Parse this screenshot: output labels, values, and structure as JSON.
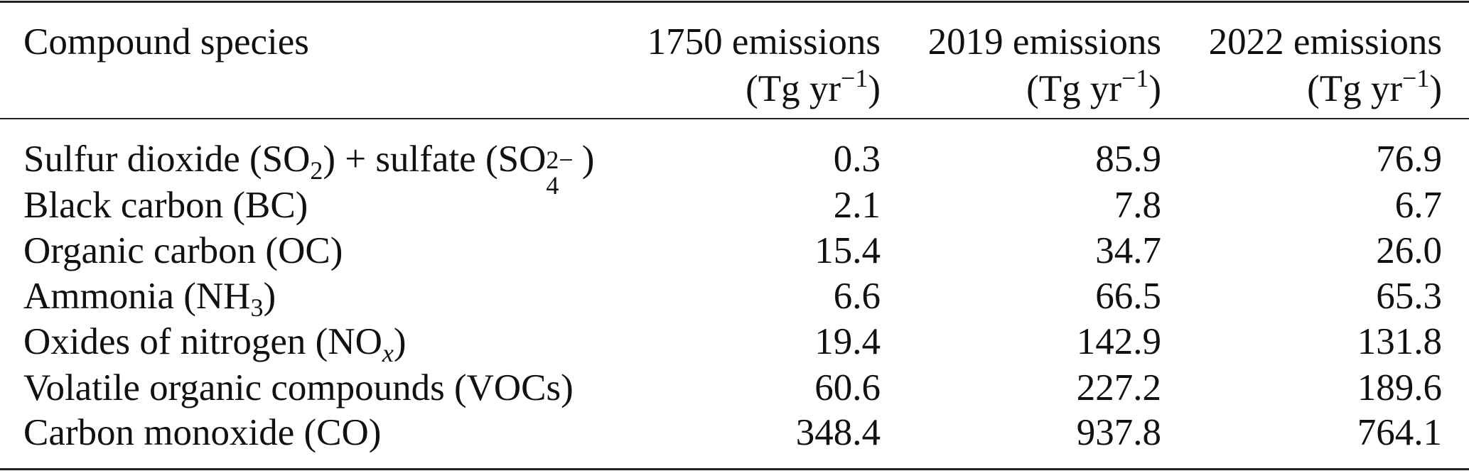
{
  "header": {
    "species": "Compound species",
    "columns": [
      {
        "line1": "1750 emissions",
        "unit": "(Tg yr",
        "exp": "−1",
        "close": ")"
      },
      {
        "line1": "2019 emissions",
        "unit": "(Tg yr",
        "exp": "−1",
        "close": ")"
      },
      {
        "line1": "2022 emissions",
        "unit": "(Tg yr",
        "exp": "−1",
        "close": ")"
      }
    ]
  },
  "rows": [
    {
      "label": [
        "Sulfur dioxide (SO",
        "2",
        ") + sulfate (SO",
        "4",
        "2−",
        ")"
      ],
      "values": [
        "0.3",
        "85.9",
        "76.9"
      ]
    },
    {
      "label": [
        "Black carbon (BC)"
      ],
      "values": [
        "2.1",
        "7.8",
        "6.7"
      ]
    },
    {
      "label": [
        "Organic carbon (OC)"
      ],
      "values": [
        "15.4",
        "34.7",
        "26.0"
      ]
    },
    {
      "label": [
        "Ammonia (NH",
        "3",
        ")"
      ],
      "values": [
        "6.6",
        "66.5",
        "65.3"
      ]
    },
    {
      "label": [
        "Oxides of nitrogen (NO",
        "x",
        ")"
      ],
      "values": [
        "19.4",
        "142.9",
        "131.8"
      ]
    },
    {
      "label": [
        "Volatile organic compounds (VOCs)"
      ],
      "values": [
        "60.6",
        "227.2",
        "189.6"
      ]
    },
    {
      "label": [
        "Carbon monoxide (CO)"
      ],
      "values": [
        "348.4",
        "937.8",
        "764.1"
      ]
    }
  ]
}
